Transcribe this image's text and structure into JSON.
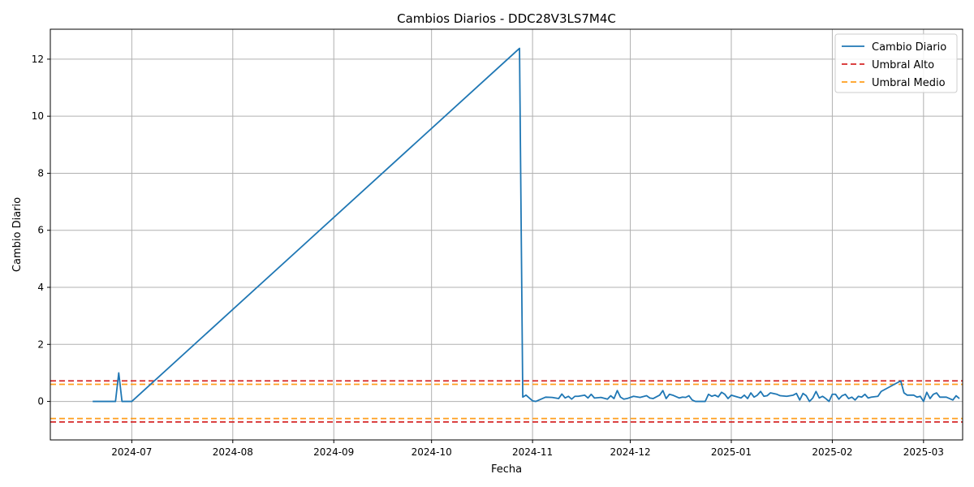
{
  "chart_data": {
    "type": "line",
    "title": "Cambios Diarios - DDC28V3LS7M4C",
    "xlabel": "Fecha",
    "ylabel": "Cambio Diario",
    "grid": true,
    "legend_position": "top-right",
    "xlim": [
      "2024-06-06",
      "2025-03-13"
    ],
    "ylim": [
      -1.35,
      13.05
    ],
    "x_ticks": [
      "2024-07",
      "2024-08",
      "2024-09",
      "2024-10",
      "2024-11",
      "2024-12",
      "2025-01",
      "2025-02",
      "2025-03"
    ],
    "y_ticks": [
      0,
      2,
      4,
      6,
      8,
      10,
      12
    ],
    "series": [
      {
        "name": "Cambio Diario",
        "color": "#1f77b4",
        "style": "solid",
        "points": [
          [
            "2024-06-19",
            0.0
          ],
          [
            "2024-06-22",
            0.0
          ],
          [
            "2024-06-25",
            0.0
          ],
          [
            "2024-06-26",
            0.0
          ],
          [
            "2024-06-27",
            1.0
          ],
          [
            "2024-06-28",
            0.0
          ],
          [
            "2024-06-30",
            0.0
          ],
          [
            "2024-07-01",
            0.0
          ],
          [
            "2024-10-28",
            12.38
          ],
          [
            "2024-10-29",
            0.15
          ],
          [
            "2024-10-30",
            0.22
          ],
          [
            "2024-10-31",
            0.12
          ],
          [
            "2024-11-01",
            0.02
          ],
          [
            "2024-11-02",
            0.0
          ],
          [
            "2024-11-03",
            0.05
          ],
          [
            "2024-11-05",
            0.15
          ],
          [
            "2024-11-07",
            0.14
          ],
          [
            "2024-11-09",
            0.1
          ],
          [
            "2024-11-10",
            0.26
          ],
          [
            "2024-11-11",
            0.12
          ],
          [
            "2024-11-12",
            0.18
          ],
          [
            "2024-11-13",
            0.08
          ],
          [
            "2024-11-14",
            0.18
          ],
          [
            "2024-11-15",
            0.18
          ],
          [
            "2024-11-17",
            0.22
          ],
          [
            "2024-11-18",
            0.12
          ],
          [
            "2024-11-19",
            0.25
          ],
          [
            "2024-11-20",
            0.12
          ],
          [
            "2024-11-22",
            0.14
          ],
          [
            "2024-11-24",
            0.08
          ],
          [
            "2024-11-25",
            0.2
          ],
          [
            "2024-11-26",
            0.1
          ],
          [
            "2024-11-27",
            0.38
          ],
          [
            "2024-11-28",
            0.15
          ],
          [
            "2024-11-29",
            0.08
          ],
          [
            "2024-11-30",
            0.1
          ],
          [
            "2024-12-02",
            0.18
          ],
          [
            "2024-12-04",
            0.14
          ],
          [
            "2024-12-06",
            0.2
          ],
          [
            "2024-12-07",
            0.12
          ],
          [
            "2024-12-08",
            0.1
          ],
          [
            "2024-12-10",
            0.22
          ],
          [
            "2024-12-11",
            0.38
          ],
          [
            "2024-12-12",
            0.1
          ],
          [
            "2024-12-13",
            0.25
          ],
          [
            "2024-12-14",
            0.22
          ],
          [
            "2024-12-16",
            0.12
          ],
          [
            "2024-12-17",
            0.15
          ],
          [
            "2024-12-18",
            0.14
          ],
          [
            "2024-12-19",
            0.2
          ],
          [
            "2024-12-20",
            0.05
          ],
          [
            "2024-12-21",
            0.0
          ],
          [
            "2024-12-24",
            0.0
          ],
          [
            "2024-12-25",
            0.25
          ],
          [
            "2024-12-26",
            0.18
          ],
          [
            "2024-12-27",
            0.22
          ],
          [
            "2024-12-28",
            0.16
          ],
          [
            "2024-12-29",
            0.32
          ],
          [
            "2024-12-30",
            0.25
          ],
          [
            "2024-12-31",
            0.1
          ],
          [
            "2025-01-01",
            0.22
          ],
          [
            "2025-01-03",
            0.15
          ],
          [
            "2025-01-04",
            0.12
          ],
          [
            "2025-01-05",
            0.22
          ],
          [
            "2025-01-06",
            0.1
          ],
          [
            "2025-01-07",
            0.3
          ],
          [
            "2025-01-08",
            0.15
          ],
          [
            "2025-01-09",
            0.22
          ],
          [
            "2025-01-10",
            0.35
          ],
          [
            "2025-01-11",
            0.18
          ],
          [
            "2025-01-12",
            0.2
          ],
          [
            "2025-01-13",
            0.3
          ],
          [
            "2025-01-15",
            0.25
          ],
          [
            "2025-01-16",
            0.2
          ],
          [
            "2025-01-18",
            0.18
          ],
          [
            "2025-01-20",
            0.22
          ],
          [
            "2025-01-21",
            0.28
          ],
          [
            "2025-01-22",
            0.05
          ],
          [
            "2025-01-23",
            0.28
          ],
          [
            "2025-01-24",
            0.2
          ],
          [
            "2025-01-25",
            0.0
          ],
          [
            "2025-01-26",
            0.12
          ],
          [
            "2025-01-27",
            0.35
          ],
          [
            "2025-01-28",
            0.12
          ],
          [
            "2025-01-29",
            0.18
          ],
          [
            "2025-01-30",
            0.1
          ],
          [
            "2025-01-31",
            0.0
          ],
          [
            "2025-02-01",
            0.25
          ],
          [
            "2025-02-02",
            0.25
          ],
          [
            "2025-02-03",
            0.08
          ],
          [
            "2025-02-04",
            0.2
          ],
          [
            "2025-02-05",
            0.25
          ],
          [
            "2025-02-06",
            0.1
          ],
          [
            "2025-02-07",
            0.15
          ],
          [
            "2025-02-08",
            0.05
          ],
          [
            "2025-02-09",
            0.18
          ],
          [
            "2025-02-10",
            0.15
          ],
          [
            "2025-02-11",
            0.25
          ],
          [
            "2025-02-12",
            0.12
          ],
          [
            "2025-02-13",
            0.15
          ],
          [
            "2025-02-15",
            0.18
          ],
          [
            "2025-02-16",
            0.35
          ],
          [
            "2025-02-22",
            0.72
          ],
          [
            "2025-02-23",
            0.3
          ],
          [
            "2025-02-24",
            0.22
          ],
          [
            "2025-02-26",
            0.22
          ],
          [
            "2025-02-27",
            0.15
          ],
          [
            "2025-02-28",
            0.18
          ],
          [
            "2025-03-01",
            0.0
          ],
          [
            "2025-03-02",
            0.32
          ],
          [
            "2025-03-03",
            0.1
          ],
          [
            "2025-03-04",
            0.25
          ],
          [
            "2025-03-05",
            0.3
          ],
          [
            "2025-03-06",
            0.15
          ],
          [
            "2025-03-08",
            0.15
          ],
          [
            "2025-03-09",
            0.1
          ],
          [
            "2025-03-10",
            0.05
          ],
          [
            "2025-03-11",
            0.2
          ],
          [
            "2025-03-12",
            0.1
          ]
        ]
      },
      {
        "name": "Umbral Alto",
        "color": "#d62728",
        "style": "dashed",
        "hlines": [
          0.72,
          -0.72
        ]
      },
      {
        "name": "Umbral Medio",
        "color": "#ff9f1c",
        "style": "dashed",
        "hlines": [
          0.6,
          -0.6
        ]
      }
    ]
  }
}
